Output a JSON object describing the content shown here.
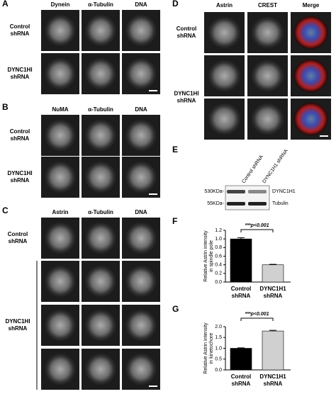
{
  "panels": {
    "A": {
      "label": "A",
      "columns": [
        "Dynein",
        "α-Tubulin",
        "DNA"
      ],
      "rows": [
        [
          "Control",
          "shRNA"
        ],
        [
          "DYNC1HI",
          "shRNA"
        ]
      ]
    },
    "B": {
      "label": "B",
      "columns": [
        "NuMA",
        "α-Tubulin",
        "DNA"
      ],
      "rows": [
        [
          "Control",
          "shRNA"
        ],
        [
          "DYNC1HI",
          "shRNA"
        ]
      ]
    },
    "C": {
      "label": "C",
      "columns": [
        "Astrin",
        "α-Tubulin",
        "DNA"
      ],
      "rows": [
        [
          "Control",
          "shRNA"
        ],
        [
          "DYNC1HI",
          "shRNA"
        ]
      ]
    },
    "D": {
      "label": "D",
      "columns": [
        "Astrin",
        "CREST",
        "Merge"
      ],
      "rows": [
        [
          "Control",
          "shRNA"
        ],
        [
          "DYNC1HI",
          "shRNA"
        ]
      ]
    },
    "E": {
      "label": "E",
      "lanes": [
        "Control shRNA",
        "DYNC1H1 shRNA"
      ],
      "markers": [
        "530KDa-",
        "55KDa-"
      ],
      "bands": [
        "DYNC1H1",
        "Tubulin"
      ]
    },
    "F": {
      "label": "F",
      "chart": {
        "type": "bar",
        "ylabel": [
          "Relative Astrin intensity",
          "in spindle pole"
        ],
        "categories": [
          [
            "Control",
            "shRNA"
          ],
          [
            "DYNC1H1",
            "shRNA"
          ]
        ],
        "values": [
          1.0,
          0.4
        ],
        "errors": [
          0.03,
          0.01
        ],
        "colors": [
          "#000000",
          "#d0d0d0"
        ],
        "annotation": "***p<0.001",
        "ylim": [
          0,
          1.2
        ],
        "yticks": [
          {
            "value": 0,
            "label": "0.0"
          },
          {
            "value": 0.2,
            "label": "0.2"
          },
          {
            "value": 0.4,
            "label": "0.4"
          },
          {
            "value": 0.6,
            "label": "0.6"
          },
          {
            "value": 0.8,
            "label": "0.8"
          },
          {
            "value": 1.0,
            "label": "1.0"
          },
          {
            "value": 1.2,
            "label": "1.2"
          }
        ]
      }
    },
    "G": {
      "label": "G",
      "chart": {
        "type": "bar",
        "ylabel": [
          "Relative Astrin intensity",
          "in kinetochore"
        ],
        "categories": [
          [
            "Control",
            "shRNA"
          ],
          [
            "DYNC1H1",
            "shRNA"
          ]
        ],
        "values": [
          1.0,
          1.8
        ],
        "errors": [
          0.02,
          0.03
        ],
        "colors": [
          "#000000",
          "#d0d0d0"
        ],
        "annotation": "***p<0.001",
        "ylim": [
          0,
          2.0
        ],
        "yticks": [
          {
            "value": 0,
            "label": "0.0"
          },
          {
            "value": 0.5,
            "label": "0.5"
          },
          {
            "value": 1.0,
            "label": "1.0"
          },
          {
            "value": 1.5,
            "label": "1.5"
          },
          {
            "value": 2.0,
            "label": "2.0"
          }
        ]
      }
    }
  }
}
